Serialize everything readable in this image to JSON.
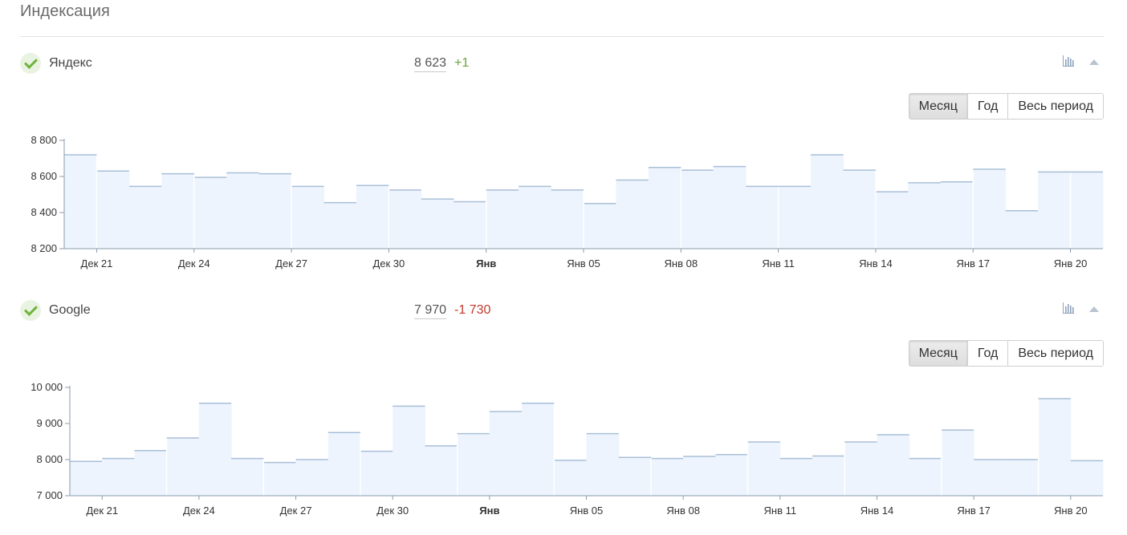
{
  "page": {
    "title": "Индексация"
  },
  "colors": {
    "bar_fill": "#edf4fd",
    "bar_top": "#a9bfd8",
    "axis": "#8a9bb0",
    "separator": "#ffffff",
    "positive": "#6aa53c",
    "negative": "#c0392b"
  },
  "engines": [
    {
      "name": "Яндекс",
      "count": "8 623",
      "delta": "+1",
      "delta_sign": "positive",
      "chart_icon": "bar-chart-icon",
      "collapse_icon": "triangle-up-icon",
      "periods": [
        {
          "label": "Месяц",
          "active": true
        },
        {
          "label": "Год",
          "active": false
        },
        {
          "label": "Весь период",
          "active": false
        }
      ]
    },
    {
      "name": "Google",
      "count": "7 970",
      "delta": "-1 730",
      "delta_sign": "negative",
      "chart_icon": "bar-chart-icon",
      "collapse_icon": "triangle-up-icon",
      "periods": [
        {
          "label": "Месяц",
          "active": true
        },
        {
          "label": "Год",
          "active": false
        },
        {
          "label": "Весь период",
          "active": false
        }
      ]
    }
  ],
  "chart_data": [
    {
      "type": "area",
      "title": "",
      "series_label": "Яндекс",
      "ylim": [
        8200,
        8800
      ],
      "y_ticks": [
        {
          "value": 8800,
          "label": "8 800"
        },
        {
          "value": 8600,
          "label": "8 600"
        },
        {
          "value": 8400,
          "label": "8 400"
        },
        {
          "value": 8200,
          "label": "8 200"
        }
      ],
      "x_ticks": [
        {
          "index": 1,
          "label": "Дек 21",
          "bold": false
        },
        {
          "index": 4,
          "label": "Дек 24",
          "bold": false
        },
        {
          "index": 7,
          "label": "Дек 27",
          "bold": false
        },
        {
          "index": 10,
          "label": "Дек 30",
          "bold": false
        },
        {
          "index": 13,
          "label": "Янв",
          "bold": true
        },
        {
          "index": 16,
          "label": "Янв 05",
          "bold": false
        },
        {
          "index": 19,
          "label": "Янв 08",
          "bold": false
        },
        {
          "index": 22,
          "label": "Янв 11",
          "bold": false
        },
        {
          "index": 25,
          "label": "Янв 14",
          "bold": false
        },
        {
          "index": 28,
          "label": "Янв 17",
          "bold": false
        },
        {
          "index": 31,
          "label": "Янв 20",
          "bold": false
        }
      ],
      "separators_after_index": [
        0,
        3,
        6,
        9,
        12,
        15,
        18,
        21,
        24,
        27,
        30
      ],
      "values": [
        8720,
        8630,
        8545,
        8615,
        8595,
        8620,
        8615,
        8545,
        8455,
        8550,
        8525,
        8475,
        8460,
        8525,
        8545,
        8525,
        8450,
        8580,
        8650,
        8635,
        8655,
        8545,
        8545,
        8720,
        8635,
        8515,
        8565,
        8570,
        8640,
        8410,
        8625,
        8625
      ],
      "grid": false
    },
    {
      "type": "area",
      "title": "",
      "series_label": "Google",
      "ylim": [
        7000,
        10000
      ],
      "y_ticks": [
        {
          "value": 10000,
          "label": "10 000"
        },
        {
          "value": 9000,
          "label": "9 000"
        },
        {
          "value": 8000,
          "label": "8 000"
        },
        {
          "value": 7000,
          "label": "7 000"
        }
      ],
      "x_ticks": [
        {
          "index": 1,
          "label": "Дек 21",
          "bold": false
        },
        {
          "index": 4,
          "label": "Дек 24",
          "bold": false
        },
        {
          "index": 7,
          "label": "Дек 27",
          "bold": false
        },
        {
          "index": 10,
          "label": "Дек 30",
          "bold": false
        },
        {
          "index": 13,
          "label": "Янв",
          "bold": true
        },
        {
          "index": 16,
          "label": "Янв 05",
          "bold": false
        },
        {
          "index": 19,
          "label": "Янв 08",
          "bold": false
        },
        {
          "index": 22,
          "label": "Янв 11",
          "bold": false
        },
        {
          "index": 25,
          "label": "Янв 14",
          "bold": false
        },
        {
          "index": 28,
          "label": "Янв 17",
          "bold": false
        },
        {
          "index": 31,
          "label": "Янв 20",
          "bold": false
        }
      ],
      "separators_after_index": [
        2,
        5,
        8,
        11,
        14,
        17,
        20,
        23,
        26,
        29
      ],
      "values": [
        7950,
        8030,
        8250,
        8600,
        9560,
        8030,
        7920,
        8000,
        8750,
        8230,
        9480,
        8380,
        8720,
        9330,
        9560,
        7980,
        8720,
        8060,
        8030,
        8090,
        8140,
        8490,
        8030,
        8100,
        8490,
        8690,
        8030,
        8820,
        8000,
        8000,
        9690,
        7970
      ],
      "grid": false
    }
  ]
}
